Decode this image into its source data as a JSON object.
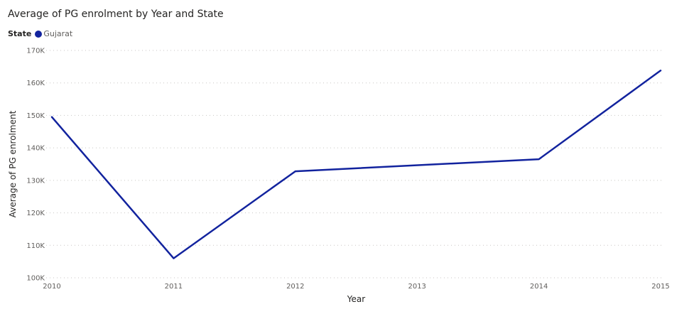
{
  "chart_data": {
    "type": "line",
    "title": "Average of PG enrolment by Year and State",
    "legend": {
      "title": "State",
      "placement": "top-left"
    },
    "xlabel": "Year",
    "ylabel": "Average of PG enrolment",
    "x": [
      "2010",
      "2011",
      "2012",
      "2013",
      "2014",
      "2015"
    ],
    "ylim": [
      100000,
      170000
    ],
    "yticks": [
      {
        "value": 100000,
        "label": "100K"
      },
      {
        "value": 110000,
        "label": "110K"
      },
      {
        "value": 120000,
        "label": "120K"
      },
      {
        "value": 130000,
        "label": "130K"
      },
      {
        "value": 140000,
        "label": "140K"
      },
      {
        "value": 150000,
        "label": "150K"
      },
      {
        "value": 160000,
        "label": "160K"
      },
      {
        "value": 170000,
        "label": "170K"
      }
    ],
    "grid": "horizontal-dotted",
    "series": [
      {
        "name": "Gujarat",
        "color": "#12239e",
        "points": [
          {
            "x": "2010",
            "y": 149500
          },
          {
            "x": "2011",
            "y": 106000
          },
          {
            "x": "2012",
            "y": 132800
          },
          {
            "x": "2014",
            "y": 136500
          },
          {
            "x": "2015",
            "y": 163800
          }
        ]
      }
    ]
  }
}
